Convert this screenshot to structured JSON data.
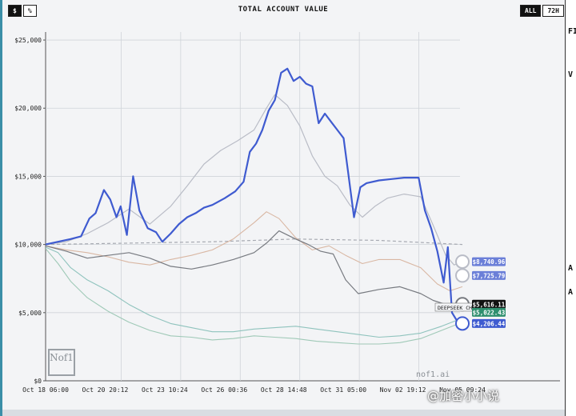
{
  "header": {
    "left_toggle": [
      "$",
      "%"
    ],
    "left_active": "$",
    "title": "TOTAL ACCOUNT VALUE",
    "range_options": [
      "ALL",
      "72H"
    ],
    "range_active": "ALL"
  },
  "side_fragments": [
    "FI",
    "V",
    "A",
    "A"
  ],
  "branding": {
    "logo_text": "Nof1",
    "site": "nof1.ai",
    "watermark": "@加密小小说"
  },
  "colors": {
    "main": "#3f5bd0",
    "gray1": "#b9bcc6",
    "gray2": "#777a80",
    "tan": "#d9b7a3",
    "dash": "#a7aab2",
    "teal": "#8fc3bd",
    "green": "#9fc9b7",
    "grid": "#d0d4d9"
  },
  "chart_data": {
    "type": "line",
    "title": "TOTAL ACCOUNT VALUE",
    "y_ticks": [
      "$0",
      "$5,000",
      "$10,000",
      "$15,000",
      "$20,000",
      "$25,000"
    ],
    "ylim": [
      0,
      26000
    ],
    "x_ticks": [
      "Oct 18 06:00",
      "Oct 20 20:12",
      "Oct 23 10:24",
      "Oct 26 00:36",
      "Oct 28 14:48",
      "Oct 31 05:00",
      "Nov 02 19:12",
      "Nov 05 09:24"
    ],
    "x_range": [
      "Oct 18 06:00",
      "Nov 05 09:24"
    ],
    "series": [
      {
        "key": "main",
        "width": 2.2,
        "values": [
          [
            0,
            10000
          ],
          [
            0.03,
            10200
          ],
          [
            0.06,
            10400
          ],
          [
            0.085,
            10600
          ],
          [
            0.105,
            11900
          ],
          [
            0.12,
            12300
          ],
          [
            0.14,
            14000
          ],
          [
            0.155,
            13300
          ],
          [
            0.17,
            12000
          ],
          [
            0.18,
            12800
          ],
          [
            0.195,
            10700
          ],
          [
            0.21,
            15000
          ],
          [
            0.225,
            12500
          ],
          [
            0.245,
            11200
          ],
          [
            0.265,
            10900
          ],
          [
            0.28,
            10200
          ],
          [
            0.3,
            10800
          ],
          [
            0.32,
            11500
          ],
          [
            0.34,
            12000
          ],
          [
            0.36,
            12300
          ],
          [
            0.38,
            12700
          ],
          [
            0.4,
            12900
          ],
          [
            0.43,
            13400
          ],
          [
            0.455,
            13900
          ],
          [
            0.475,
            14600
          ],
          [
            0.49,
            16800
          ],
          [
            0.505,
            17400
          ],
          [
            0.52,
            18400
          ],
          [
            0.535,
            19800
          ],
          [
            0.55,
            20600
          ],
          [
            0.565,
            22600
          ],
          [
            0.58,
            22900
          ],
          [
            0.595,
            22000
          ],
          [
            0.61,
            22300
          ],
          [
            0.625,
            21800
          ],
          [
            0.64,
            21600
          ],
          [
            0.655,
            18900
          ],
          [
            0.67,
            19600
          ],
          [
            0.685,
            19000
          ],
          [
            0.7,
            18400
          ],
          [
            0.715,
            17800
          ],
          [
            0.725,
            15500
          ],
          [
            0.74,
            12000
          ],
          [
            0.755,
            14200
          ],
          [
            0.77,
            14500
          ],
          [
            0.8,
            14700
          ],
          [
            0.83,
            14800
          ],
          [
            0.86,
            14900
          ],
          [
            0.895,
            14900
          ],
          [
            0.91,
            12500
          ],
          [
            0.925,
            11200
          ],
          [
            0.94,
            9500
          ],
          [
            0.955,
            7200
          ],
          [
            0.965,
            9800
          ],
          [
            0.975,
            5000
          ],
          [
            0.985,
            4500
          ],
          [
            1.0,
            4206
          ]
        ]
      },
      {
        "key": "gray1",
        "width": 1.2,
        "values": [
          [
            0,
            10000
          ],
          [
            0.05,
            10200
          ],
          [
            0.1,
            10800
          ],
          [
            0.15,
            11600
          ],
          [
            0.2,
            12600
          ],
          [
            0.25,
            11500
          ],
          [
            0.3,
            12800
          ],
          [
            0.34,
            14300
          ],
          [
            0.38,
            15900
          ],
          [
            0.42,
            16900
          ],
          [
            0.46,
            17600
          ],
          [
            0.5,
            18400
          ],
          [
            0.53,
            20000
          ],
          [
            0.55,
            21000
          ],
          [
            0.58,
            20200
          ],
          [
            0.61,
            18700
          ],
          [
            0.64,
            16500
          ],
          [
            0.67,
            15000
          ],
          [
            0.7,
            14300
          ],
          [
            0.73,
            12900
          ],
          [
            0.76,
            12000
          ],
          [
            0.79,
            12800
          ],
          [
            0.82,
            13400
          ],
          [
            0.86,
            13700
          ],
          [
            0.9,
            13500
          ],
          [
            0.93,
            11400
          ],
          [
            0.96,
            9200
          ],
          [
            0.98,
            8500
          ],
          [
            1.0,
            8740
          ]
        ]
      },
      {
        "key": "gray2",
        "width": 1.2,
        "values": [
          [
            0,
            9900
          ],
          [
            0.05,
            9500
          ],
          [
            0.1,
            9000
          ],
          [
            0.15,
            9200
          ],
          [
            0.2,
            9400
          ],
          [
            0.25,
            9000
          ],
          [
            0.3,
            8400
          ],
          [
            0.35,
            8200
          ],
          [
            0.4,
            8500
          ],
          [
            0.45,
            8900
          ],
          [
            0.5,
            9400
          ],
          [
            0.53,
            10100
          ],
          [
            0.56,
            11000
          ],
          [
            0.6,
            10400
          ],
          [
            0.63,
            10000
          ],
          [
            0.66,
            9500
          ],
          [
            0.69,
            9300
          ],
          [
            0.72,
            7400
          ],
          [
            0.75,
            6400
          ],
          [
            0.8,
            6700
          ],
          [
            0.85,
            6900
          ],
          [
            0.9,
            6400
          ],
          [
            0.93,
            5900
          ],
          [
            0.96,
            5600
          ],
          [
            1.0,
            5616
          ]
        ]
      },
      {
        "key": "tan",
        "width": 1.1,
        "values": [
          [
            0,
            9900
          ],
          [
            0.05,
            9600
          ],
          [
            0.1,
            9400
          ],
          [
            0.15,
            9100
          ],
          [
            0.2,
            8700
          ],
          [
            0.25,
            8500
          ],
          [
            0.3,
            8900
          ],
          [
            0.35,
            9200
          ],
          [
            0.4,
            9600
          ],
          [
            0.45,
            10400
          ],
          [
            0.5,
            11600
          ],
          [
            0.53,
            12400
          ],
          [
            0.56,
            11900
          ],
          [
            0.6,
            10500
          ],
          [
            0.64,
            9600
          ],
          [
            0.68,
            9900
          ],
          [
            0.72,
            9200
          ],
          [
            0.76,
            8600
          ],
          [
            0.8,
            8900
          ],
          [
            0.85,
            8900
          ],
          [
            0.9,
            8300
          ],
          [
            0.94,
            7100
          ],
          [
            0.97,
            6600
          ],
          [
            1.0,
            6900
          ]
        ]
      },
      {
        "key": "dash",
        "width": 1.2,
        "dashed": true,
        "values": [
          [
            0,
            10000
          ],
          [
            0.2,
            10100
          ],
          [
            0.4,
            10200
          ],
          [
            0.6,
            10400
          ],
          [
            0.8,
            10300
          ],
          [
            1.0,
            10000
          ]
        ]
      },
      {
        "key": "teal",
        "width": 1.1,
        "values": [
          [
            0,
            9800
          ],
          [
            0.03,
            9400
          ],
          [
            0.06,
            8300
          ],
          [
            0.1,
            7400
          ],
          [
            0.15,
            6600
          ],
          [
            0.2,
            5600
          ],
          [
            0.25,
            4800
          ],
          [
            0.3,
            4200
          ],
          [
            0.35,
            3900
          ],
          [
            0.4,
            3600
          ],
          [
            0.45,
            3600
          ],
          [
            0.5,
            3800
          ],
          [
            0.55,
            3900
          ],
          [
            0.6,
            4000
          ],
          [
            0.65,
            3800
          ],
          [
            0.7,
            3600
          ],
          [
            0.75,
            3400
          ],
          [
            0.8,
            3200
          ],
          [
            0.85,
            3300
          ],
          [
            0.9,
            3500
          ],
          [
            0.95,
            4000
          ],
          [
            1.0,
            4600
          ]
        ]
      },
      {
        "key": "green",
        "width": 1.1,
        "values": [
          [
            0,
            9700
          ],
          [
            0.03,
            8600
          ],
          [
            0.06,
            7300
          ],
          [
            0.1,
            6100
          ],
          [
            0.15,
            5100
          ],
          [
            0.2,
            4300
          ],
          [
            0.25,
            3700
          ],
          [
            0.3,
            3300
          ],
          [
            0.35,
            3200
          ],
          [
            0.4,
            3000
          ],
          [
            0.45,
            3100
          ],
          [
            0.5,
            3300
          ],
          [
            0.55,
            3200
          ],
          [
            0.6,
            3100
          ],
          [
            0.65,
            2900
          ],
          [
            0.7,
            2800
          ],
          [
            0.75,
            2700
          ],
          [
            0.8,
            2700
          ],
          [
            0.85,
            2800
          ],
          [
            0.9,
            3100
          ],
          [
            0.95,
            3700
          ],
          [
            1.0,
            4300
          ]
        ]
      }
    ],
    "end_labels": [
      {
        "text": "$8,740.96",
        "value": 8740.96,
        "bg": "#6b7fd8",
        "fg": "#ffffff"
      },
      {
        "text": "$7,725.79",
        "value": 7725.79,
        "bg": "#6b7fd8",
        "fg": "#ffffff"
      },
      {
        "text": "$5,616.11",
        "value": 5616.11,
        "bg": "#111111",
        "fg": "#ffffff"
      },
      {
        "text": "$5,022.43",
        "value": 5022.43,
        "bg": "#2f8f6e",
        "fg": "#ffffff"
      },
      {
        "text": "$4,206.44",
        "value": 4206.44,
        "bg": "#3f5bd0",
        "fg": "#ffffff"
      }
    ],
    "annotation": {
      "text": "DEEPSEEK CHA",
      "value": 5400
    },
    "grid": true
  }
}
